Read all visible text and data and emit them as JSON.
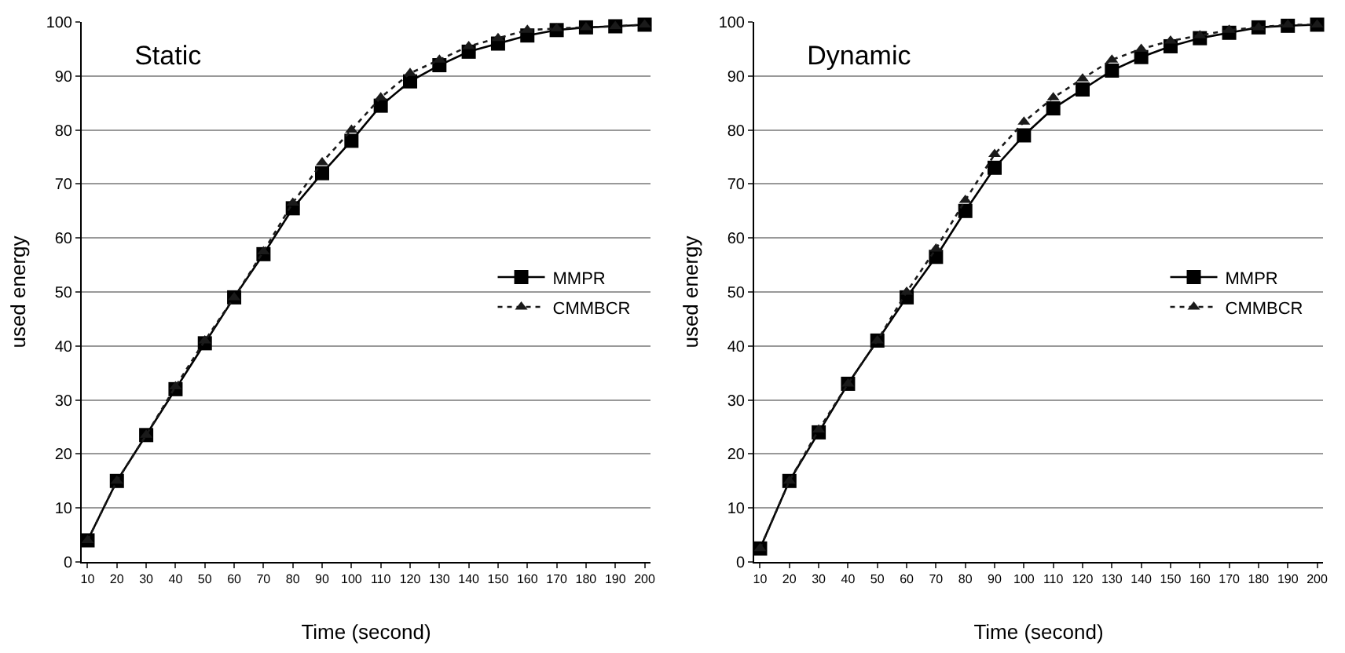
{
  "chart_data": [
    {
      "type": "line",
      "title": "Static",
      "xlabel": "Time (second)",
      "ylabel": "used energy",
      "categories": [
        "10",
        "20",
        "30",
        "40",
        "50",
        "60",
        "70",
        "80",
        "90",
        "100",
        "110",
        "120",
        "130",
        "140",
        "150",
        "160",
        "170",
        "180",
        "190",
        "200"
      ],
      "ylim": [
        0,
        100
      ],
      "yticks": [
        0,
        10,
        20,
        30,
        40,
        50,
        60,
        70,
        80,
        90,
        100
      ],
      "grid": "y",
      "legend": "right",
      "series": [
        {
          "name": "MMPR",
          "color": "#000000",
          "marker": "square",
          "line_style": "solid",
          "values": [
            4,
            15,
            23.5,
            32,
            40.5,
            49,
            57,
            65.5,
            72,
            78,
            84.5,
            89,
            92,
            94.5,
            96,
            97.5,
            98.5,
            99,
            99.2,
            99.5
          ]
        },
        {
          "name": "CMMBCR",
          "color": "#1a1a1a",
          "marker": "triangle",
          "line_style": "dotted",
          "values": [
            4,
            15,
            23.5,
            32.5,
            41,
            49,
            57.5,
            66.5,
            74,
            80,
            86,
            90.5,
            93,
            95.5,
            97,
            98.5,
            98.8,
            99,
            99.2,
            99.5
          ]
        }
      ]
    },
    {
      "type": "line",
      "title": "Dynamic",
      "xlabel": "Time (second)",
      "ylabel": "used energy",
      "categories": [
        "10",
        "20",
        "30",
        "40",
        "50",
        "60",
        "70",
        "80",
        "90",
        "100",
        "110",
        "120",
        "130",
        "140",
        "150",
        "160",
        "170",
        "180",
        "190",
        "200"
      ],
      "ylim": [
        0,
        100
      ],
      "yticks": [
        0,
        10,
        20,
        30,
        40,
        50,
        60,
        70,
        80,
        90,
        100
      ],
      "grid": "y",
      "legend": "right",
      "series": [
        {
          "name": "MMPR",
          "color": "#000000",
          "marker": "square",
          "line_style": "solid",
          "values": [
            2.5,
            15,
            24,
            33,
            41,
            49,
            56.5,
            65,
            73,
            79,
            84,
            87.5,
            91,
            93.5,
            95.5,
            97,
            98,
            99,
            99.3,
            99.5
          ]
        },
        {
          "name": "CMMBCR",
          "color": "#1a1a1a",
          "marker": "triangle",
          "line_style": "dotted",
          "values": [
            2.5,
            15,
            24.5,
            33,
            41,
            50,
            58,
            67,
            75.5,
            81.5,
            86,
            89.5,
            93,
            95,
            96.5,
            97.5,
            98.5,
            99,
            99.5,
            99.5
          ]
        }
      ]
    }
  ]
}
